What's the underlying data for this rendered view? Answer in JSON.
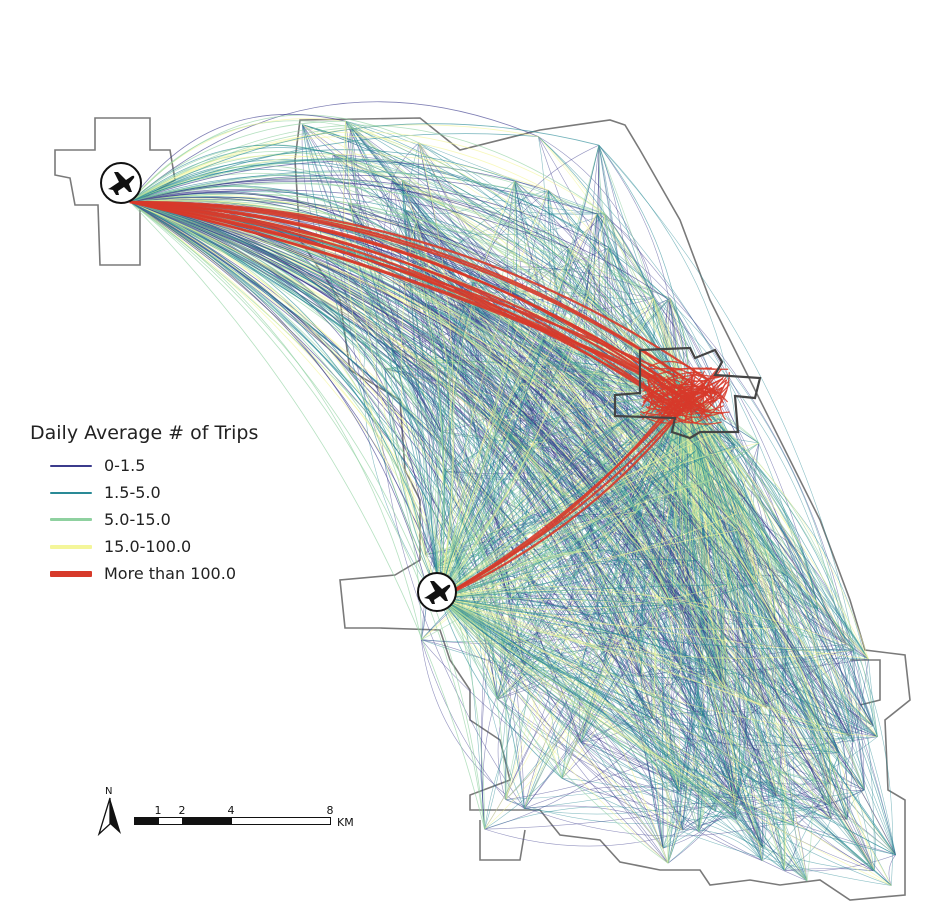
{
  "legend": {
    "title": "Daily Average # of Trips",
    "classes": [
      {
        "label": "0-1.5",
        "color": "#3b3b8c"
      },
      {
        "label": "1.5-5.0",
        "color": "#2a8a96"
      },
      {
        "label": "5.0-15.0",
        "color": "#8fd1a0"
      },
      {
        "label": "15.0-100.0",
        "color": "#f4f69a"
      },
      {
        "label": "More than 100.0",
        "color": "#d73a2a"
      }
    ]
  },
  "north_arrow": {
    "letter": "N"
  },
  "scale_bar": {
    "ticks": [
      "1",
      "2",
      "4",
      "8"
    ],
    "unit": "KM"
  },
  "icons": {
    "airport_1": "airplane-icon",
    "airport_2": "airplane-icon"
  }
}
